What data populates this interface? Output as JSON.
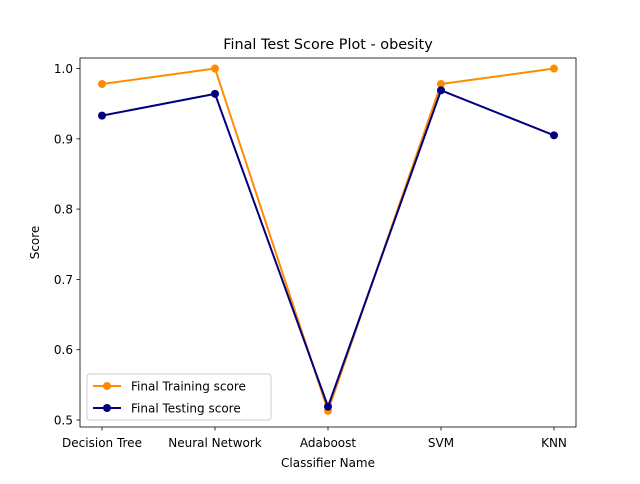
{
  "chart_data": {
    "type": "line",
    "title": "Final Test Score Plot - obesity",
    "xlabel": "Classifier Name",
    "ylabel": "Score",
    "categories": [
      "Decision Tree",
      "Neural Network",
      "Adaboost",
      "SVM",
      "KNN"
    ],
    "ylim": [
      0.49,
      1.015
    ],
    "yticks": [
      "0.5",
      "0.6",
      "0.7",
      "0.8",
      "0.9",
      "1.0"
    ],
    "grid": false,
    "legend_position": "lower-left",
    "series": [
      {
        "name": "Final Training score",
        "color": "#ff8c00",
        "marker": "circle",
        "values": [
          0.978,
          1.0,
          0.513,
          0.978,
          1.0
        ]
      },
      {
        "name": "Final Testing score",
        "color": "#000080",
        "marker": "circle",
        "values": [
          0.933,
          0.964,
          0.519,
          0.969,
          0.905
        ]
      }
    ]
  }
}
